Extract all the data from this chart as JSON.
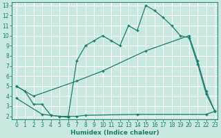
{
  "xlabel": "Humidex (Indice chaleur)",
  "bg_color": "#c8e8e0",
  "grid_color": "#ffffff",
  "line_color": "#1a7a6a",
  "xlim": [
    -0.5,
    23.3
  ],
  "ylim": [
    1.7,
    13.3
  ],
  "xticks": [
    0,
    1,
    2,
    3,
    4,
    5,
    6,
    7,
    8,
    9,
    10,
    11,
    12,
    13,
    14,
    15,
    16,
    17,
    18,
    19,
    20,
    21,
    22,
    23
  ],
  "yticks": [
    2,
    3,
    4,
    5,
    6,
    7,
    8,
    9,
    10,
    11,
    12,
    13
  ],
  "line1_x": [
    0,
    1,
    2,
    3,
    4,
    5,
    6,
    7,
    8,
    9,
    10,
    11,
    12,
    13,
    14,
    15,
    16,
    17,
    18,
    19,
    20,
    21,
    22,
    23
  ],
  "line1_y": [
    5.0,
    4.5,
    3.2,
    3.2,
    2.1,
    2.0,
    1.9,
    7.5,
    9.0,
    9.5,
    10.0,
    9.5,
    9.0,
    11.0,
    10.5,
    13.0,
    12.5,
    11.8,
    11.0,
    10.0,
    9.8,
    7.2,
    4.2,
    2.5
  ],
  "line2_x": [
    0,
    2,
    7,
    10,
    15,
    20,
    21,
    22,
    23
  ],
  "line2_y": [
    5.0,
    4.0,
    5.5,
    6.5,
    8.5,
    10.0,
    7.5,
    4.5,
    2.5
  ],
  "line3_x": [
    0,
    3,
    4,
    5,
    6,
    7,
    8,
    14,
    22,
    23
  ],
  "line3_y": [
    3.8,
    2.2,
    2.1,
    2.0,
    2.0,
    2.0,
    2.1,
    2.2,
    2.2,
    2.5
  ]
}
